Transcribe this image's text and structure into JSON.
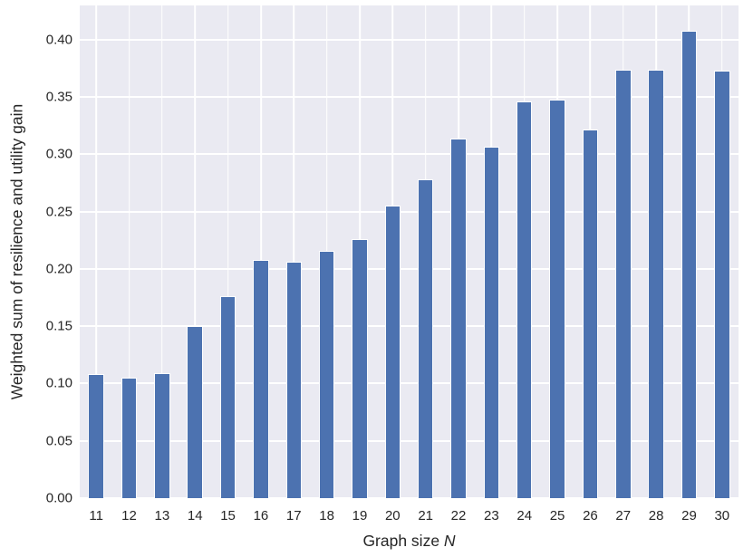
{
  "chart_data": {
    "type": "bar",
    "title": "",
    "xlabel": "Graph size N",
    "xlabel_prefix": "Graph size ",
    "xlabel_var": "N",
    "ylabel": "Weighted sum of resilience and utility gain",
    "categories": [
      "11",
      "12",
      "13",
      "14",
      "15",
      "16",
      "17",
      "18",
      "19",
      "20",
      "21",
      "22",
      "23",
      "24",
      "25",
      "26",
      "27",
      "28",
      "29",
      "30"
    ],
    "values": [
      0.108,
      0.105,
      0.109,
      0.15,
      0.176,
      0.208,
      0.206,
      0.216,
      0.226,
      0.255,
      0.278,
      0.314,
      0.307,
      0.346,
      0.348,
      0.322,
      0.374,
      0.374,
      0.408,
      0.373
    ],
    "ylim": [
      0,
      0.43
    ],
    "yticks": [
      0.0,
      0.05,
      0.1,
      0.15,
      0.2,
      0.25,
      0.3,
      0.35,
      0.4
    ],
    "ytick_labels": [
      "0.00",
      "0.05",
      "0.10",
      "0.15",
      "0.20",
      "0.25",
      "0.30",
      "0.35",
      "0.40"
    ],
    "grid": true,
    "legend_position": "none",
    "style": {
      "bar_color": "#4c72b0",
      "bar_edge_color": "#ffffff",
      "plot_background": "#eaeaf2",
      "grid_color": "#ffffff",
      "figure_background": "#ffffff",
      "text_color": "#262626"
    }
  }
}
